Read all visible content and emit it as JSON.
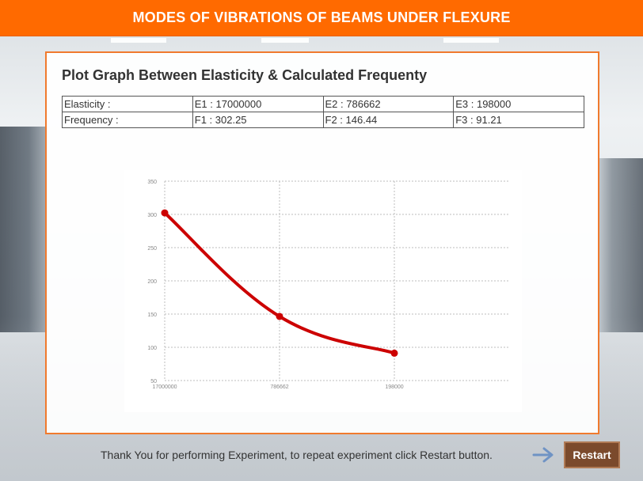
{
  "header": {
    "title": "MODES OF VIBRATIONS OF BEAMS UNDER FLEXURE"
  },
  "panel": {
    "title": "Plot Graph Between Elasticity & Calculated Frequenty",
    "table": {
      "rows": [
        [
          "Elasticity :",
          "E1 : 17000000",
          "E2 : 786662",
          "E3 : 198000"
        ],
        [
          "Frequency :",
          "F1 : 302.25",
          "F2 : 146.44",
          "F3 : 91.21"
        ]
      ]
    }
  },
  "chart_data": {
    "type": "line",
    "categories": [
      "17000000",
      "786662",
      "198000"
    ],
    "series": [
      {
        "values": [
          302.25,
          146.44,
          91.21
        ],
        "color": "#cc0000"
      }
    ],
    "title": "",
    "xlabel": "",
    "ylabel": "",
    "ylim": [
      50,
      350
    ],
    "yticks": [
      50,
      100,
      150,
      200,
      250,
      300,
      350
    ],
    "grid": true
  },
  "footer": {
    "message": "Thank You for performing Experiment, to repeat experiment click Restart button.",
    "restart_label": "Restart",
    "arrow_icon": "arrow-right-icon"
  }
}
